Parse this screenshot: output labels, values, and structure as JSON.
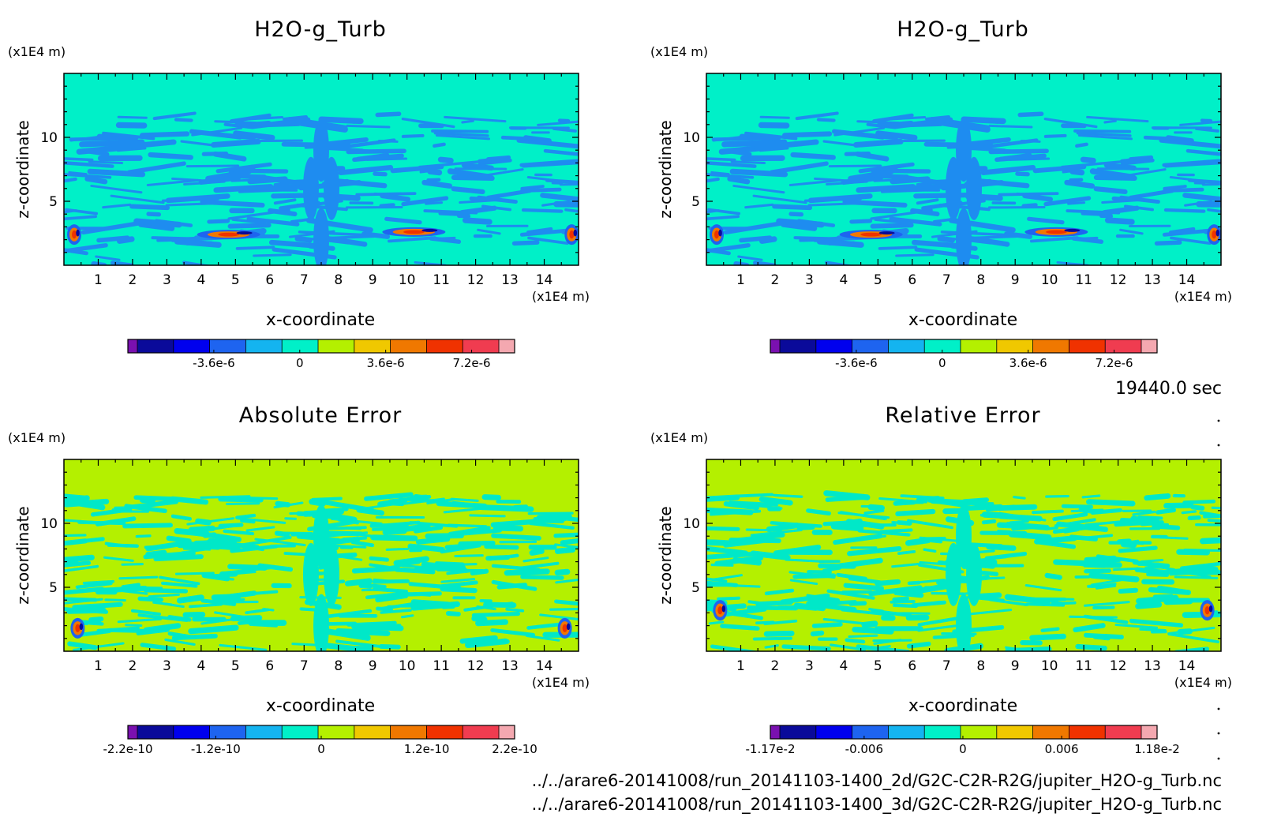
{
  "time_label": "19440.0 sec",
  "files": [
    "../../arare6-20141008/run_20141103-1400_2d/G2C-C2R-R2G/jupiter_H2O-g_Turb.nc",
    "../../arare6-20141008/run_20141103-1400_3d/G2C-C2R-R2G/jupiter_H2O-g_Turb.nc"
  ],
  "colors": {
    "palette": [
      "#7a10b0",
      "#0a0a9a",
      "#0000ee",
      "#1e64f0",
      "#14b4f0",
      "#00f0c8",
      "#b4f000",
      "#f0c800",
      "#f07800",
      "#f03200",
      "#f03c50",
      "#f4a8b0"
    ],
    "field_background": "#00f0c8",
    "field_anomaly": "#1e8cf0",
    "error_background": "#b4f000",
    "error_anomaly": "#00e8c8"
  },
  "chart_data": [
    {
      "type": "heatmap",
      "title": "H2O-g_Turb",
      "xlabel": "x-coordinate",
      "ylabel": "z-coordinate",
      "x_unit": "(x1E4 m)",
      "y_unit": "(x1E4 m)",
      "xlim": [
        0,
        15
      ],
      "ylim": [
        0,
        15
      ],
      "xticks": [
        1,
        2,
        3,
        4,
        5,
        6,
        7,
        8,
        9,
        10,
        11,
        12,
        13,
        14
      ],
      "yticks": [
        5,
        10
      ],
      "colorbar": {
        "range": [
          -7.2e-06,
          9e-06
        ],
        "tick_values": [
          -3.6e-06,
          0,
          3.6e-06,
          7.2e-06
        ],
        "tick_labels": [
          "-3.6e-6",
          "0",
          "3.6e-6",
          "7.2e-6"
        ]
      }
    },
    {
      "type": "heatmap",
      "title": "H2O-g_Turb",
      "xlabel": "x-coordinate",
      "ylabel": "z-coordinate",
      "x_unit": "(x1E4 m)",
      "y_unit": "(x1E4 m)",
      "xlim": [
        0,
        15
      ],
      "ylim": [
        0,
        15
      ],
      "xticks": [
        1,
        2,
        3,
        4,
        5,
        6,
        7,
        8,
        9,
        10,
        11,
        12,
        13,
        14
      ],
      "yticks": [
        5,
        10
      ],
      "colorbar": {
        "range": [
          -7.2e-06,
          9e-06
        ],
        "tick_values": [
          -3.6e-06,
          0,
          3.6e-06,
          7.2e-06
        ],
        "tick_labels": [
          "-3.6e-6",
          "0",
          "3.6e-6",
          "7.2e-6"
        ]
      }
    },
    {
      "type": "heatmap",
      "title": "Absolute Error",
      "xlabel": "x-coordinate",
      "ylabel": "z-coordinate",
      "x_unit": "(x1E4 m)",
      "y_unit": "(x1E4 m)",
      "xlim": [
        0,
        15
      ],
      "ylim": [
        0,
        15
      ],
      "xticks": [
        1,
        2,
        3,
        4,
        5,
        6,
        7,
        8,
        9,
        10,
        11,
        12,
        13,
        14
      ],
      "yticks": [
        5,
        10
      ],
      "colorbar": {
        "range": [
          -2.2e-10,
          2.2e-10
        ],
        "tick_values": [
          -2.2e-10,
          -1.2e-10,
          0,
          1.2e-10,
          2.2e-10
        ],
        "tick_labels": [
          "-2.2e-10",
          "-1.2e-10",
          "0",
          "1.2e-10",
          "2.2e-10"
        ]
      }
    },
    {
      "type": "heatmap",
      "title": "Relative Error",
      "xlabel": "x-coordinate",
      "ylabel": "z-coordinate",
      "x_unit": "(x1E4 m)",
      "y_unit": "(x1E4 m)",
      "xlim": [
        0,
        15
      ],
      "ylim": [
        0,
        15
      ],
      "xticks": [
        1,
        2,
        3,
        4,
        5,
        6,
        7,
        8,
        9,
        10,
        11,
        12,
        13,
        14
      ],
      "yticks": [
        5,
        10
      ],
      "colorbar": {
        "range": [
          -0.0117,
          0.0118
        ],
        "tick_values": [
          -0.0117,
          -0.006,
          0,
          0.006,
          0.0118
        ],
        "tick_labels": [
          "-1.17e-2",
          "-0.006",
          "0",
          "0.006",
          "1.18e-2"
        ]
      }
    }
  ]
}
